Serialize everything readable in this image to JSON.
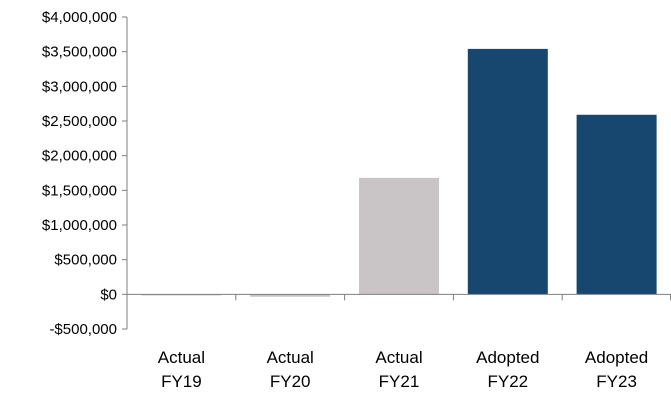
{
  "chart_data": {
    "type": "bar",
    "title": "",
    "xlabel": "",
    "ylabel": "",
    "categories": [
      [
        "Actual",
        "FY19"
      ],
      [
        "Actual",
        "FY20"
      ],
      [
        "Actual",
        "FY21"
      ],
      [
        "Adopted",
        "FY22"
      ],
      [
        "Adopted",
        "FY23"
      ]
    ],
    "values": [
      5000,
      -35000,
      1680000,
      3540000,
      2590000
    ],
    "bar_colors": [
      "#c9c4c6",
      "#c9c4c6",
      "#c9c4c6",
      "#17476e",
      "#17476e"
    ],
    "ylim": [
      -500000,
      4000000
    ],
    "yticks": [
      4000000,
      3500000,
      3000000,
      2500000,
      2000000,
      1500000,
      1000000,
      500000,
      0,
      -500000
    ],
    "ytick_labels": [
      "$4,000,000",
      "$3,500,000",
      "$3,000,000",
      "$2,500,000",
      "$2,000,000",
      "$1,500,000",
      "$1,000,000",
      "$500,000",
      "$0",
      "-$500,000"
    ],
    "grid": false,
    "legend": "none"
  }
}
